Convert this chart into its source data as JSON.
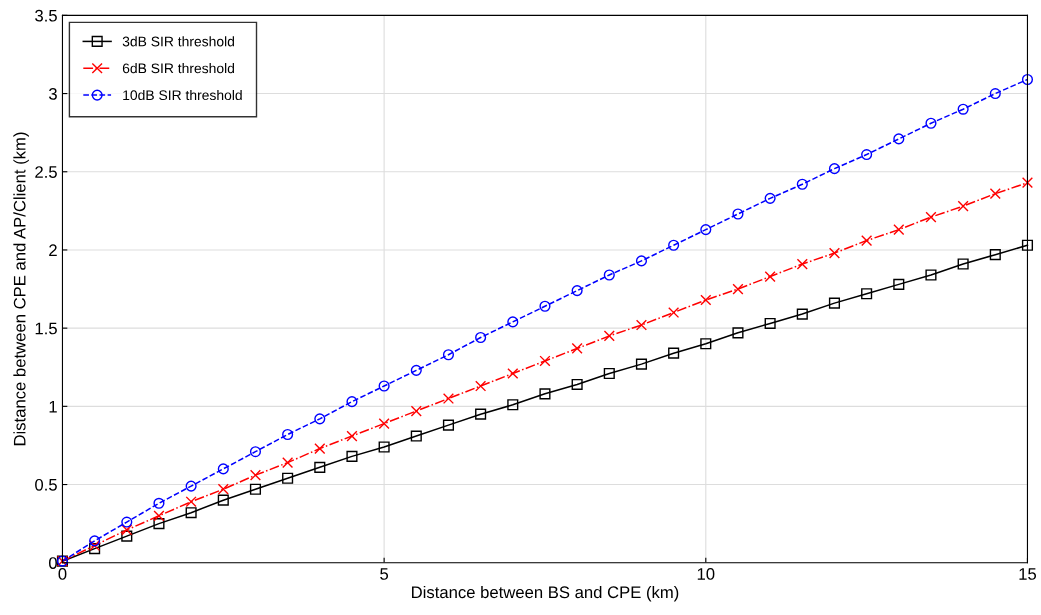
{
  "chart_data": {
    "type": "line",
    "xlabel": "Distance between BS and CPE (km)",
    "ylabel": "Distance between CPE and AP/Client (km)",
    "x": [
      0,
      0.5,
      1,
      1.5,
      2,
      2.5,
      3,
      3.5,
      4,
      4.5,
      5,
      5.5,
      6,
      6.5,
      7,
      7.5,
      8,
      8.5,
      9,
      9.5,
      10,
      10.5,
      11,
      11.5,
      12,
      12.5,
      13,
      13.5,
      14,
      14.5,
      15
    ],
    "series": [
      {
        "name": "3dB SIR threshold",
        "color": "#000000",
        "marker": "square",
        "line_style": "solid",
        "values": [
          0.01,
          0.09,
          0.17,
          0.25,
          0.32,
          0.4,
          0.47,
          0.54,
          0.61,
          0.68,
          0.74,
          0.81,
          0.88,
          0.95,
          1.01,
          1.08,
          1.14,
          1.21,
          1.27,
          1.34,
          1.4,
          1.47,
          1.53,
          1.59,
          1.66,
          1.72,
          1.78,
          1.84,
          1.91,
          1.97,
          2.03
        ]
      },
      {
        "name": "6dB SIR threshold",
        "color": "#ff0000",
        "marker": "cross",
        "line_style": "dashdot",
        "values": [
          0.01,
          0.11,
          0.21,
          0.3,
          0.39,
          0.47,
          0.56,
          0.64,
          0.73,
          0.81,
          0.89,
          0.97,
          1.05,
          1.13,
          1.21,
          1.29,
          1.37,
          1.45,
          1.52,
          1.6,
          1.68,
          1.75,
          1.83,
          1.91,
          1.98,
          2.06,
          2.13,
          2.21,
          2.28,
          2.36,
          2.43
        ]
      },
      {
        "name": "10dB SIR threshold",
        "color": "#0000ff",
        "marker": "circle",
        "line_style": "dashed",
        "values": [
          0.01,
          0.14,
          0.26,
          0.38,
          0.49,
          0.6,
          0.71,
          0.82,
          0.92,
          1.03,
          1.13,
          1.23,
          1.33,
          1.44,
          1.54,
          1.64,
          1.74,
          1.84,
          1.93,
          2.03,
          2.13,
          2.23,
          2.33,
          2.42,
          2.52,
          2.61,
          2.71,
          2.81,
          2.9,
          3.0,
          3.09
        ]
      }
    ],
    "xlim": [
      0,
      15
    ],
    "xticks": [
      0,
      5,
      10,
      15
    ],
    "ylim": [
      0,
      3.5
    ],
    "yticks": [
      0,
      0.5,
      1,
      1.5,
      2,
      2.5,
      3,
      3.5
    ],
    "grid": true,
    "legend": "top left"
  }
}
